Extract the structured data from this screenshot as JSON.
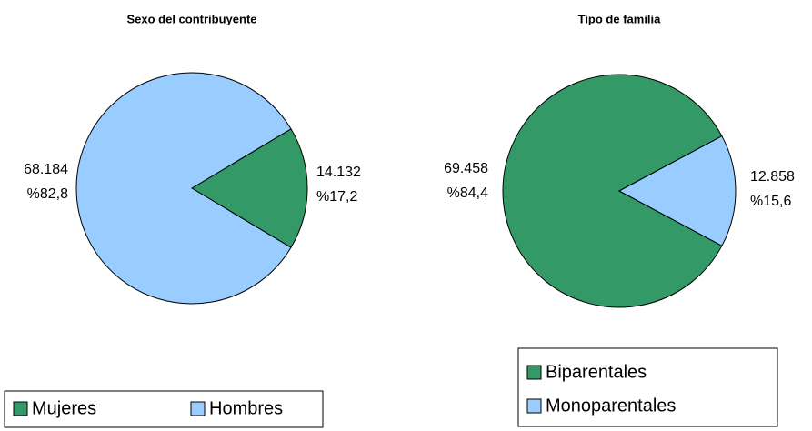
{
  "chart_data": [
    {
      "type": "pie",
      "title": "Sexo del contribuyente",
      "categories": [
        "Mujeres",
        "Hombres"
      ],
      "values": [
        14132,
        68184
      ],
      "value_labels": [
        "14.132",
        "68.184"
      ],
      "percents": [
        17.2,
        82.8
      ],
      "percent_labels": [
        "%17,2",
        "%82,8"
      ],
      "colors": [
        "#339966",
        "#99ccff"
      ],
      "legend": "bottom"
    },
    {
      "type": "pie",
      "title": "Tipo de familia",
      "categories": [
        "Biparentales",
        "Monoparentales"
      ],
      "values": [
        69458,
        12858
      ],
      "value_labels": [
        "69.458",
        "12.858"
      ],
      "percents": [
        84.4,
        15.6
      ],
      "percent_labels": [
        "%84,4",
        "%15,6"
      ],
      "colors": [
        "#339966",
        "#99ccff"
      ],
      "legend": "bottom"
    }
  ]
}
